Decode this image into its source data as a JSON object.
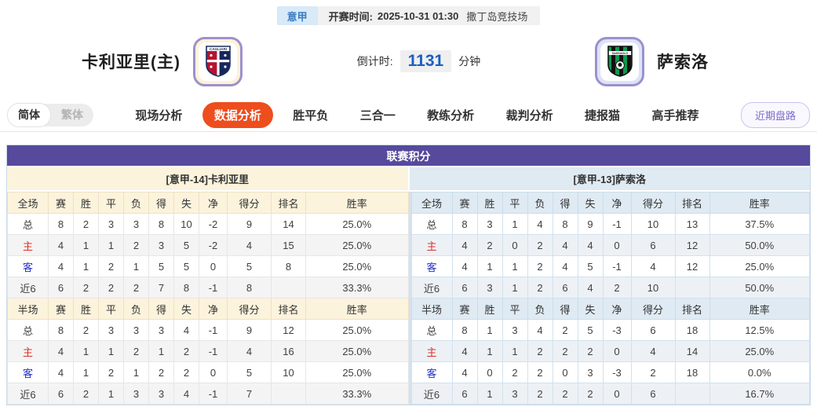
{
  "top_bar": {
    "league_badge": "意甲",
    "kickoff_label": "开赛时间:",
    "kickoff_time": "2025-10-31 01:30",
    "venue": "撒丁岛竞技场"
  },
  "match": {
    "home_name": "卡利亚里(主)",
    "away_name": "萨索洛",
    "countdown_label": "倒计时:",
    "countdown_value": "1131",
    "countdown_unit": "分钟"
  },
  "nav": {
    "lang_simplified": "简体",
    "lang_traditional": "繁体",
    "items": [
      {
        "label": "现场分析",
        "active": false
      },
      {
        "label": "数据分析",
        "active": true
      },
      {
        "label": "胜平负",
        "active": false
      },
      {
        "label": "三合一",
        "active": false
      },
      {
        "label": "教练分析",
        "active": false
      },
      {
        "label": "裁判分析",
        "active": false
      },
      {
        "label": "捷报猫",
        "active": false
      },
      {
        "label": "高手推荐",
        "active": false
      }
    ],
    "recent_trend_button": "近期盘路"
  },
  "standings": {
    "title": "联赛积分",
    "home_header": "[意甲-14]卡利亚里",
    "away_header": "[意甲-13]萨索洛",
    "columns_full": [
      "全场",
      "赛",
      "胜",
      "平",
      "负",
      "得",
      "失",
      "净",
      "得分",
      "排名",
      "胜率"
    ],
    "columns_half": [
      "半场",
      "赛",
      "胜",
      "平",
      "负",
      "得",
      "失",
      "净",
      "得分",
      "排名",
      "胜率"
    ],
    "home": {
      "full": [
        {
          "label": "总",
          "cells": [
            "8",
            "2",
            "3",
            "3",
            "8",
            "10",
            "-2",
            "9",
            "14",
            "25.0%"
          ]
        },
        {
          "label": "主",
          "cells": [
            "4",
            "1",
            "1",
            "2",
            "3",
            "5",
            "-2",
            "4",
            "15",
            "25.0%"
          ]
        },
        {
          "label": "客",
          "cells": [
            "4",
            "1",
            "2",
            "1",
            "5",
            "5",
            "0",
            "5",
            "8",
            "25.0%"
          ]
        },
        {
          "label": "近6",
          "cells": [
            "6",
            "2",
            "2",
            "2",
            "7",
            "8",
            "-1",
            "8",
            "",
            "33.3%"
          ]
        }
      ],
      "half": [
        {
          "label": "总",
          "cells": [
            "8",
            "2",
            "3",
            "3",
            "3",
            "4",
            "-1",
            "9",
            "12",
            "25.0%"
          ]
        },
        {
          "label": "主",
          "cells": [
            "4",
            "1",
            "1",
            "2",
            "1",
            "2",
            "-1",
            "4",
            "16",
            "25.0%"
          ]
        },
        {
          "label": "客",
          "cells": [
            "4",
            "1",
            "2",
            "1",
            "2",
            "2",
            "0",
            "5",
            "10",
            "25.0%"
          ]
        },
        {
          "label": "近6",
          "cells": [
            "6",
            "2",
            "1",
            "3",
            "3",
            "4",
            "-1",
            "7",
            "",
            "33.3%"
          ]
        }
      ]
    },
    "away": {
      "full": [
        {
          "label": "总",
          "cells": [
            "8",
            "3",
            "1",
            "4",
            "8",
            "9",
            "-1",
            "10",
            "13",
            "37.5%"
          ]
        },
        {
          "label": "主",
          "cells": [
            "4",
            "2",
            "0",
            "2",
            "4",
            "4",
            "0",
            "6",
            "12",
            "50.0%"
          ]
        },
        {
          "label": "客",
          "cells": [
            "4",
            "1",
            "1",
            "2",
            "4",
            "5",
            "-1",
            "4",
            "12",
            "25.0%"
          ]
        },
        {
          "label": "近6",
          "cells": [
            "6",
            "3",
            "1",
            "2",
            "6",
            "4",
            "2",
            "10",
            "",
            "50.0%"
          ]
        }
      ],
      "half": [
        {
          "label": "总",
          "cells": [
            "8",
            "1",
            "3",
            "4",
            "2",
            "5",
            "-3",
            "6",
            "18",
            "12.5%"
          ]
        },
        {
          "label": "主",
          "cells": [
            "4",
            "1",
            "1",
            "2",
            "2",
            "2",
            "0",
            "4",
            "14",
            "25.0%"
          ]
        },
        {
          "label": "客",
          "cells": [
            "4",
            "0",
            "2",
            "2",
            "0",
            "3",
            "-3",
            "2",
            "18",
            "0.0%"
          ]
        },
        {
          "label": "近6",
          "cells": [
            "6",
            "1",
            "3",
            "2",
            "2",
            "2",
            "0",
            "6",
            "",
            "16.7%"
          ]
        }
      ]
    }
  },
  "colors": {
    "header_purple": "#57499c",
    "home_theme_cream": "#fcf3dc",
    "away_theme_blue": "#dfeaf3",
    "active_nav_orange": "#ee4d1d",
    "countdown_blue": "#1b5fc1",
    "home_label_red": "#d9332a",
    "away_label_blue": "#2330cc",
    "league_badge_blue": "#3a7cc1",
    "recent_button_purple": "#7d6ac9",
    "logo_border_purple": "#9d90cc"
  }
}
